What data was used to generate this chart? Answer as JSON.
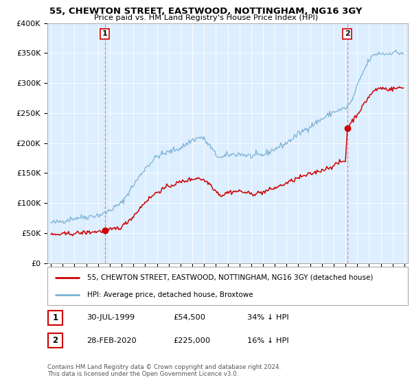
{
  "title": "55, CHEWTON STREET, EASTWOOD, NOTTINGHAM, NG16 3GY",
  "subtitle": "Price paid vs. HM Land Registry's House Price Index (HPI)",
  "ylim": [
    0,
    400000
  ],
  "yticks": [
    0,
    50000,
    100000,
    150000,
    200000,
    250000,
    300000,
    350000,
    400000
  ],
  "ytick_labels": [
    "£0",
    "£50K",
    "£100K",
    "£150K",
    "£200K",
    "£250K",
    "£300K",
    "£350K",
    "£400K"
  ],
  "xlim_left": 1994.7,
  "xlim_right": 2025.3,
  "sale1_date_num": 1999.58,
  "sale1_price": 54500,
  "sale2_date_num": 2020.16,
  "sale2_price": 225000,
  "red_color": "#cc0000",
  "blue_color": "#7ab0d4",
  "plot_bg_color": "#ddeeff",
  "marker_color": "#cc0000",
  "point1_label": "1",
  "point2_label": "2",
  "legend_line1": "55, CHEWTON STREET, EASTWOOD, NOTTINGHAM, NG16 3GY (detached house)",
  "legend_line2": "HPI: Average price, detached house, Broxtowe",
  "table_row1": [
    "1",
    "30-JUL-1999",
    "£54,500",
    "34% ↓ HPI"
  ],
  "table_row2": [
    "2",
    "28-FEB-2020",
    "£225,000",
    "16% ↓ HPI"
  ],
  "footer": "Contains HM Land Registry data © Crown copyright and database right 2024.\nThis data is licensed under the Open Government Licence v3.0.",
  "grid_color": "#ffffff",
  "hpi_anchors": [
    [
      1995.0,
      67000
    ],
    [
      1995.5,
      68000
    ],
    [
      1996.0,
      70000
    ],
    [
      1997.0,
      75000
    ],
    [
      1998.0,
      77000
    ],
    [
      1999.0,
      80000
    ],
    [
      1999.5,
      82000
    ],
    [
      2000.0,
      88000
    ],
    [
      2001.0,
      100000
    ],
    [
      2002.0,
      130000
    ],
    [
      2003.0,
      158000
    ],
    [
      2004.0,
      178000
    ],
    [
      2005.0,
      185000
    ],
    [
      2006.0,
      192000
    ],
    [
      2007.0,
      205000
    ],
    [
      2007.8,
      210000
    ],
    [
      2008.5,
      195000
    ],
    [
      2009.0,
      180000
    ],
    [
      2009.5,
      175000
    ],
    [
      2010.0,
      180000
    ],
    [
      2011.0,
      182000
    ],
    [
      2012.0,
      178000
    ],
    [
      2013.0,
      180000
    ],
    [
      2014.0,
      190000
    ],
    [
      2015.0,
      200000
    ],
    [
      2016.0,
      215000
    ],
    [
      2017.0,
      228000
    ],
    [
      2018.0,
      240000
    ],
    [
      2019.0,
      252000
    ],
    [
      2020.0,
      258000
    ],
    [
      2020.5,
      268000
    ],
    [
      2021.0,
      295000
    ],
    [
      2021.5,
      318000
    ],
    [
      2022.0,
      338000
    ],
    [
      2022.5,
      348000
    ],
    [
      2023.0,
      350000
    ],
    [
      2023.5,
      348000
    ],
    [
      2024.0,
      352000
    ],
    [
      2024.5,
      350000
    ]
  ],
  "red_anchors": [
    [
      1995.0,
      47000
    ],
    [
      1996.0,
      48000
    ],
    [
      1997.0,
      49500
    ],
    [
      1998.0,
      51000
    ],
    [
      1999.0,
      52500
    ],
    [
      1999.58,
      54500
    ],
    [
      2000.0,
      55000
    ],
    [
      2001.0,
      60000
    ],
    [
      2002.0,
      78000
    ],
    [
      2003.0,
      102000
    ],
    [
      2004.0,
      118000
    ],
    [
      2005.0,
      128000
    ],
    [
      2006.0,
      135000
    ],
    [
      2007.0,
      140000
    ],
    [
      2007.5,
      142000
    ],
    [
      2008.0,
      138000
    ],
    [
      2008.5,
      132000
    ],
    [
      2009.0,
      120000
    ],
    [
      2009.5,
      112000
    ],
    [
      2010.0,
      118000
    ],
    [
      2011.0,
      120000
    ],
    [
      2012.0,
      115000
    ],
    [
      2013.0,
      118000
    ],
    [
      2014.0,
      125000
    ],
    [
      2015.0,
      133000
    ],
    [
      2016.0,
      142000
    ],
    [
      2017.0,
      148000
    ],
    [
      2018.0,
      155000
    ],
    [
      2019.0,
      162000
    ],
    [
      2019.5,
      168000
    ],
    [
      2020.0,
      170000
    ],
    [
      2020.16,
      225000
    ],
    [
      2020.5,
      235000
    ],
    [
      2021.0,
      248000
    ],
    [
      2021.5,
      262000
    ],
    [
      2022.0,
      278000
    ],
    [
      2022.5,
      288000
    ],
    [
      2023.0,
      292000
    ],
    [
      2023.5,
      290000
    ],
    [
      2024.0,
      290000
    ],
    [
      2024.5,
      292000
    ]
  ]
}
